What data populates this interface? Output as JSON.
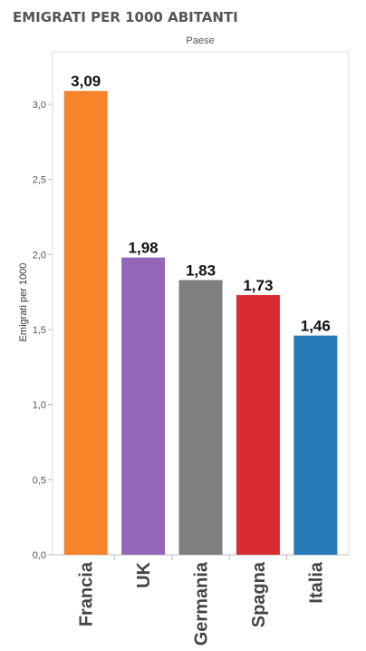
{
  "chart_data": {
    "type": "bar",
    "title": "EMIGRATI PER 1000 ABITANTI",
    "header": "Paese",
    "ylabel": "Emigrati per 1000",
    "xlabel": "",
    "categories": [
      "Francia",
      "UK",
      "Germania",
      "Spagna",
      "Italia"
    ],
    "values": [
      3.09,
      1.98,
      1.83,
      1.73,
      1.46
    ],
    "value_labels": [
      "3,09",
      "1,98",
      "1,83",
      "1,73",
      "1,46"
    ],
    "colors": [
      "#f8842a",
      "#9466b8",
      "#7f7f7f",
      "#d62c32",
      "#2879b8"
    ],
    "ylim": [
      0,
      3.2
    ],
    "yticks": [
      0,
      0.5,
      1.0,
      1.5,
      2.0,
      2.5,
      3.0
    ],
    "ytick_labels": [
      "0,0",
      "0,5",
      "1,0",
      "1,5",
      "2,0",
      "2,5",
      "3,0"
    ],
    "grid": false,
    "legend": "none"
  }
}
